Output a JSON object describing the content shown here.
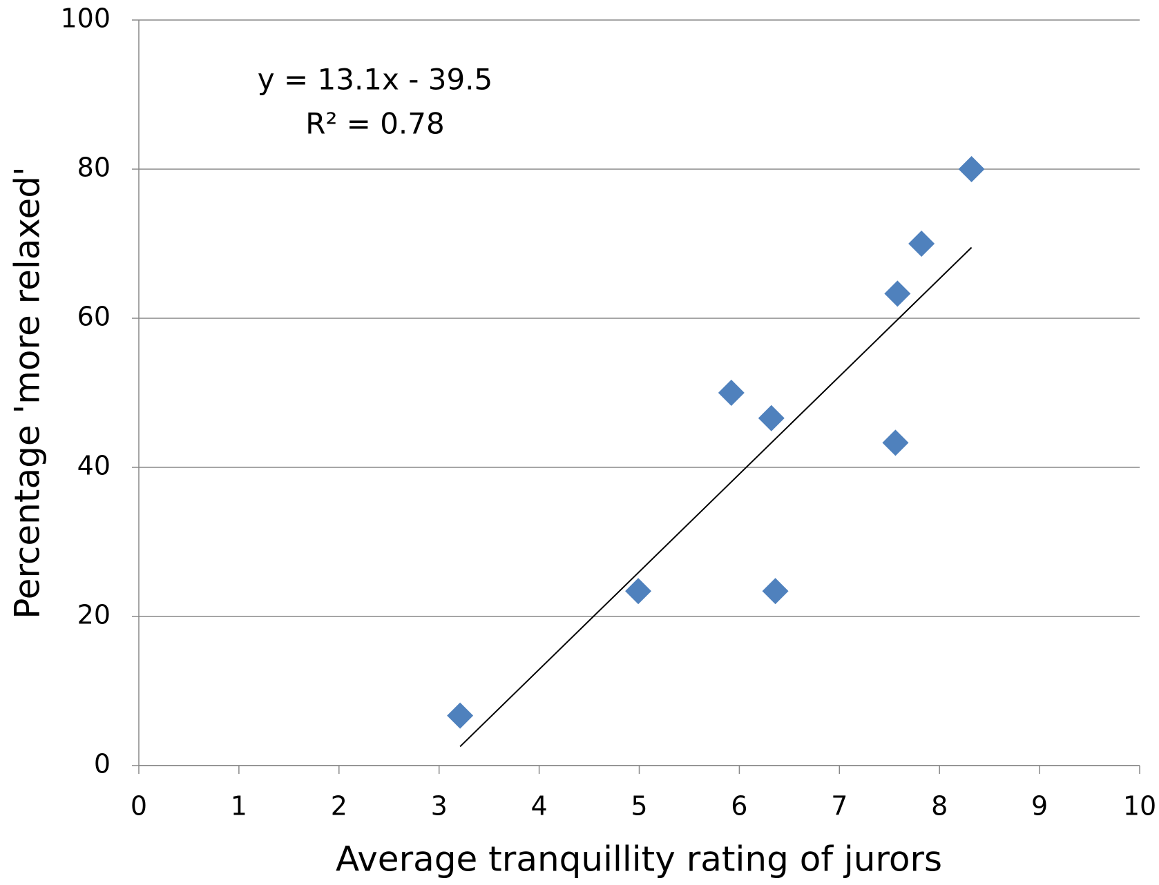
{
  "chart_data": {
    "type": "scatter",
    "x_label": "Average tranquillity rating of jurors",
    "y_label": "Percentage  'more relaxed'",
    "series": [
      {
        "color": "#4f81bd",
        "x": [
          3.21,
          4.99,
          5.92,
          6.32,
          6.36,
          7.56,
          7.58,
          7.82,
          8.32
        ],
        "values": [
          6.7,
          23.4,
          50,
          46.6,
          23.4,
          43.3,
          63.3,
          70,
          80
        ]
      }
    ],
    "trendline": {
      "label": "y = 13.1x - 39.5",
      "r2_label": "R² = 0.78",
      "slope": 13.1,
      "intercept": -39.5,
      "x_range": [
        3.21,
        8.32
      ],
      "color": "#000000"
    },
    "xlim": [
      0,
      10
    ],
    "xticks": [
      0,
      1,
      2,
      3,
      4,
      5,
      6,
      7,
      8,
      9,
      10
    ],
    "ylim": [
      0,
      100
    ],
    "yticks": [
      0,
      20,
      40,
      60,
      80,
      100
    ],
    "grid": true
  }
}
